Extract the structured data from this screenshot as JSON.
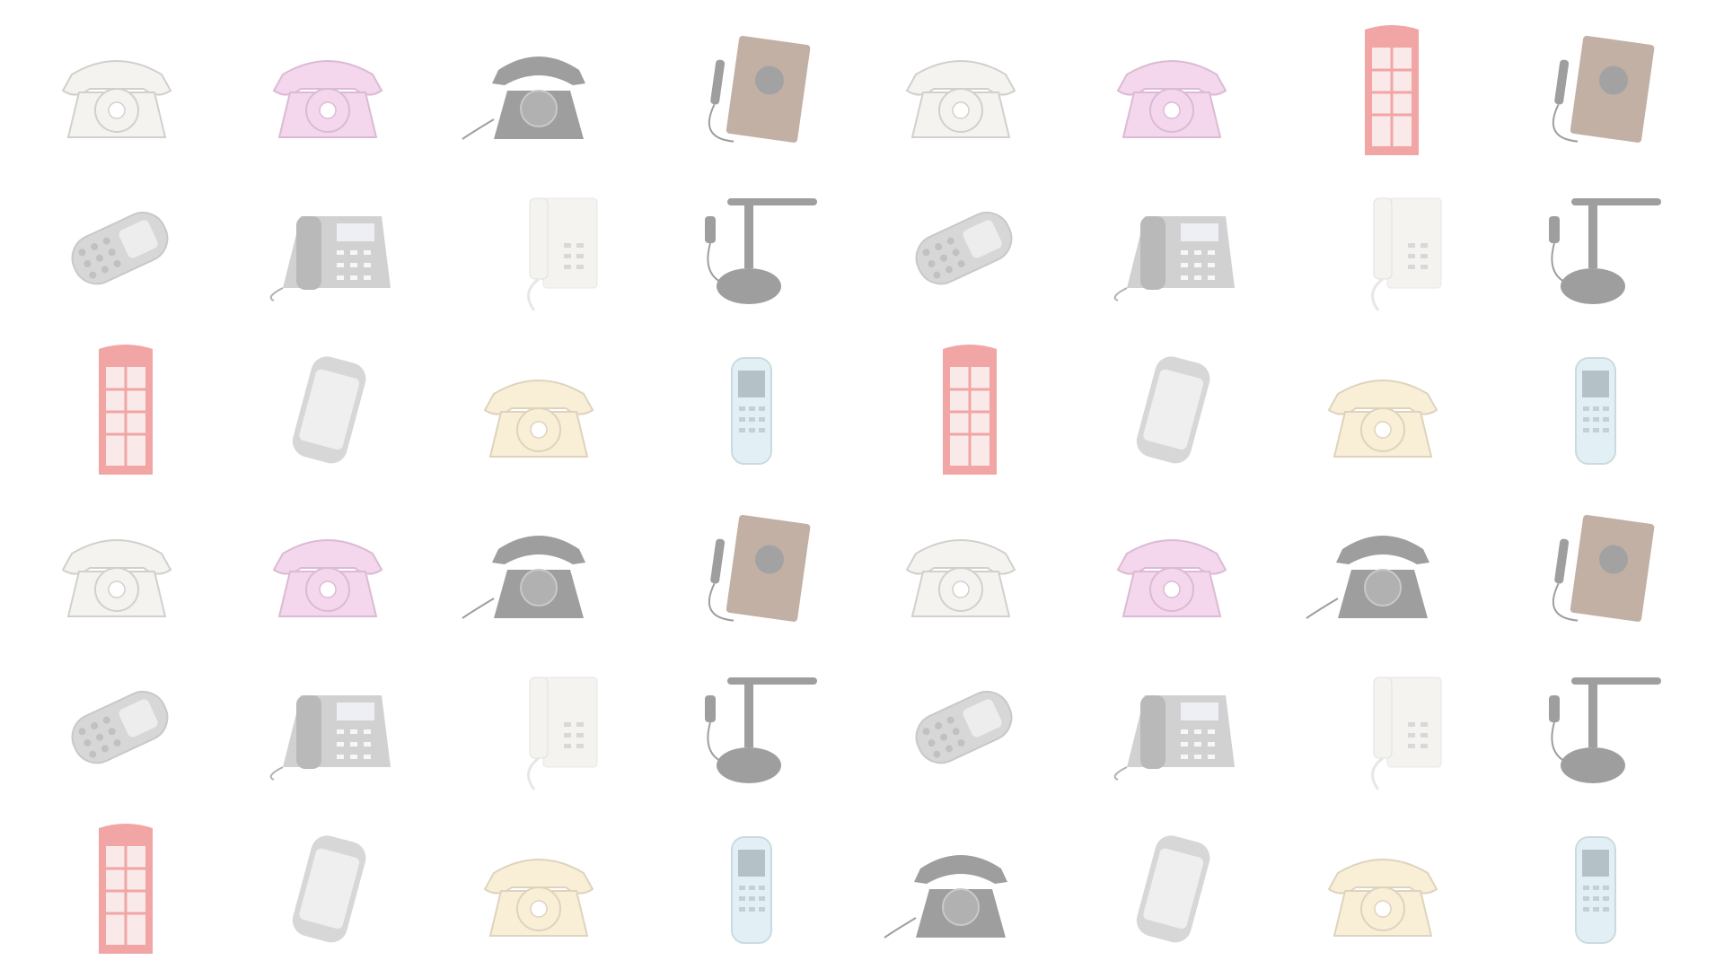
{
  "wallpaper": {
    "background": "#ffffff",
    "rows": [
      [
        "rotary-white-phone",
        "rotary-pink-phone",
        "black-desk-phone",
        "wooden-wall-phone",
        "rotary-white-phone",
        "rotary-pink-phone",
        "red-phone-booth",
        "wooden-wall-phone"
      ],
      [
        "candybar-mobile-phone",
        "office-ip-phone",
        "white-wall-phone",
        "candlestick-phone",
        "candybar-mobile-phone",
        "office-ip-phone",
        "white-wall-phone",
        "candlestick-phone"
      ],
      [
        "red-phone-booth",
        "touch-smartphone",
        "rotary-cream-phone",
        "slim-mobile-phone",
        "red-phone-booth",
        "touch-smartphone",
        "rotary-cream-phone",
        "slim-mobile-phone"
      ],
      [
        "rotary-white-phone",
        "rotary-pink-phone",
        "black-desk-phone",
        "wooden-wall-phone",
        "rotary-white-phone",
        "rotary-pink-phone",
        "black-desk-phone",
        "wooden-wall-phone"
      ],
      [
        "candybar-mobile-phone",
        "office-ip-phone",
        "white-wall-phone",
        "candlestick-phone",
        "candybar-mobile-phone",
        "office-ip-phone",
        "white-wall-phone",
        "candlestick-phone"
      ],
      [
        "red-phone-booth",
        "touch-smartphone",
        "rotary-cream-phone",
        "slim-mobile-phone",
        "black-desk-phone",
        "touch-smartphone",
        "rotary-cream-phone",
        "slim-mobile-phone"
      ]
    ],
    "colors": {
      "white": "#e8e6e0",
      "pink": "#e8a6d8",
      "black": "#2a2a2a",
      "wood": "#7a5238",
      "red": "#e23a3a",
      "cream": "#f0dca6",
      "grey": "#a8a8a8",
      "lightblue": "#bfe0ea"
    }
  }
}
